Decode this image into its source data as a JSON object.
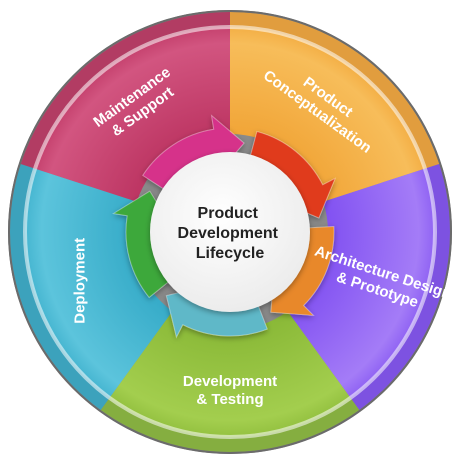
{
  "diagram": {
    "center_lines": [
      "Product",
      "Development",
      "Lifecycle"
    ],
    "segments": [
      {
        "key": "product-conceptualization",
        "lines": [
          "Product",
          "Conceptualization"
        ],
        "color": "#F0A030",
        "highlight": "#F7BD5A"
      },
      {
        "key": "architecture-design",
        "lines": [
          "Architecture Design",
          "& Prototype"
        ],
        "color": "#7A48F0",
        "highlight": "#A47CF7"
      },
      {
        "key": "development-testing",
        "lines": [
          "Development",
          "& Testing"
        ],
        "color": "#84B432",
        "highlight": "#A3CE4E"
      },
      {
        "key": "deployment",
        "lines": [
          "Deployment"
        ],
        "color": "#2EA6C4",
        "highlight": "#5CC4DC"
      },
      {
        "key": "maintenance-support",
        "lines": [
          "Maintenance",
          "& Support"
        ],
        "color": "#B82E5C",
        "highlight": "#D25580"
      }
    ],
    "arrow_colors": [
      "#E03A1E",
      "#E8882A",
      "#5FB8C8",
      "#3EA83A",
      "#D6338A"
    ]
  }
}
